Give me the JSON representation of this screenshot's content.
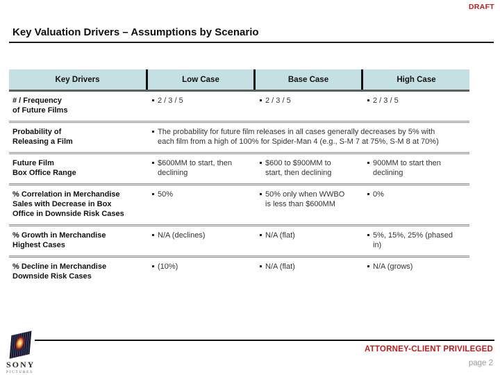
{
  "slide": {
    "draft_label": "DRAFT",
    "title": "Key Valuation Drivers – Assumptions by Scenario"
  },
  "table": {
    "headers": [
      "Key Drivers",
      "Low Case",
      "Base Case",
      "High Case"
    ],
    "rows": [
      {
        "label": "# / Frequency\nof Future Films",
        "cells": [
          "2 / 3 / 5",
          "2 / 3 / 5",
          "2 / 3 / 5"
        ]
      },
      {
        "label": "Probability of\nReleasing a Film",
        "span_text": "The probability for future film releases in all cases generally decreases by 5% with\neach film from a high of 100% for Spider-Man 4 (e.g., S-M 7 at 75%, S-M 8 at 70%)"
      },
      {
        "label": "Future Film\nBox Office Range",
        "cells": [
          "$600MM to start, then\ndeclining",
          "$600 to $900MM to\nstart, then declining",
          "900MM to start then\ndeclining"
        ]
      },
      {
        "label": "% Correlation in Merchandise\nSales with Decrease in Box\nOffice in Downside Risk Cases",
        "cells": [
          "50%",
          "50% only when WWBO\nis less than $600MM",
          "0%"
        ]
      },
      {
        "label": "% Growth in Merchandise\nHighest Cases",
        "cells": [
          "N/A (declines)",
          "N/A (flat)",
          "5%, 15%, 25% (phased\nin)"
        ]
      },
      {
        "label": "% Decline in Merchandise\nDownside Risk Cases",
        "cells": [
          "(10%)",
          "N/A (flat)",
          "N/A (grows)"
        ]
      }
    ]
  },
  "footer": {
    "privileged_label": "ATTORNEY-CLIENT PRIVILEGED",
    "page_label": "page 2",
    "logo_brand": "SONY",
    "logo_sub": "PICTURES"
  },
  "colors": {
    "header_bg": "#c5e0e2",
    "accent_red": "#c21b1b",
    "separator_gray": "#8a8a8a",
    "page_number_gray": "#9b9b9b"
  }
}
